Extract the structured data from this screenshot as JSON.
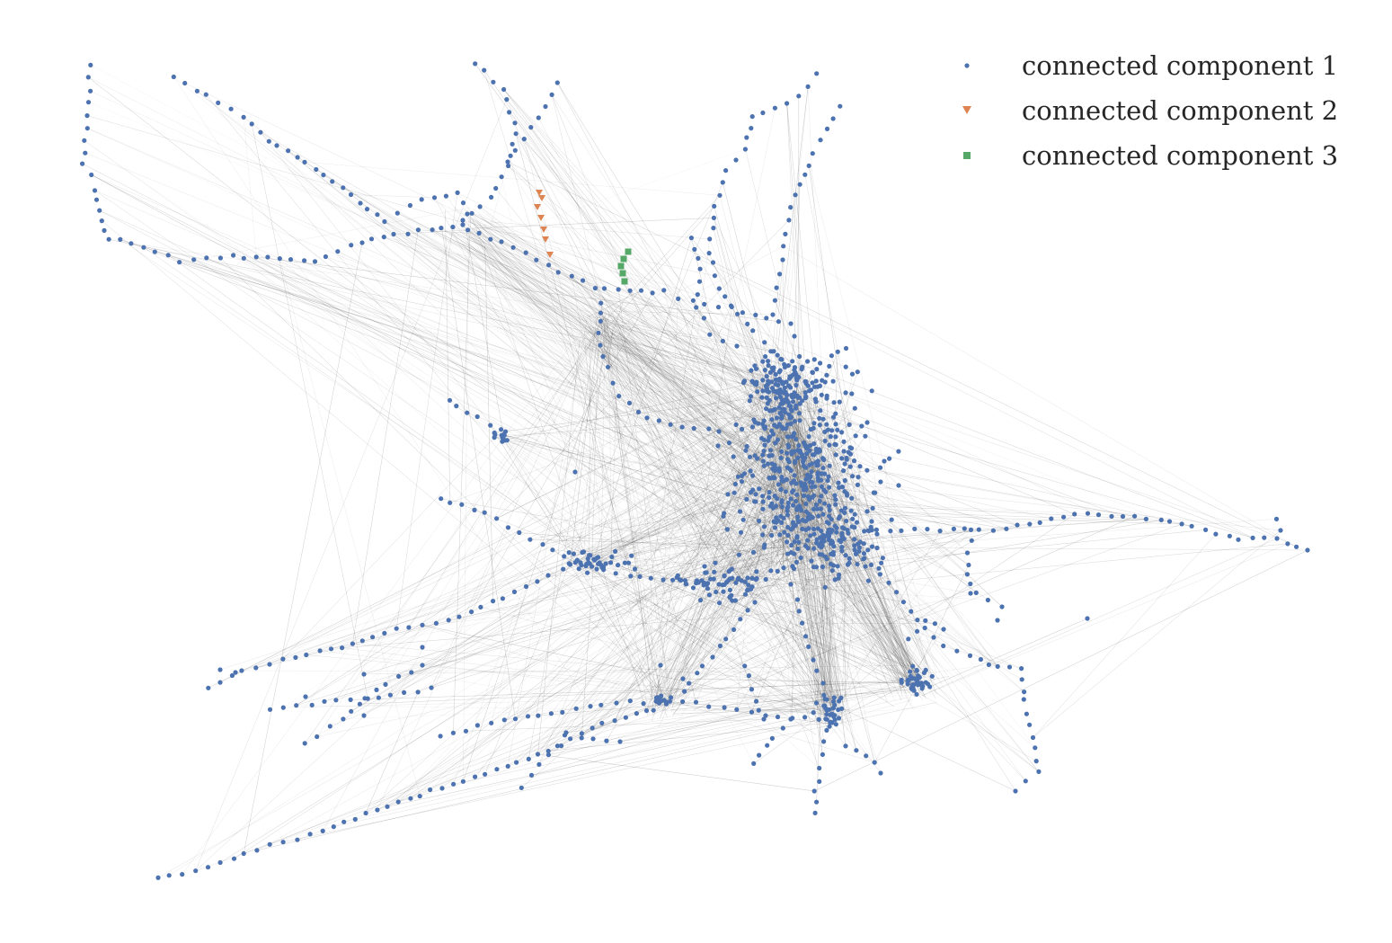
{
  "diagram": {
    "legend": [
      {
        "label": "connected component 1",
        "color": "#4c72b0",
        "marker": "circle"
      },
      {
        "label": "connected component 2",
        "color": "#dd8452",
        "marker": "triangle-down"
      },
      {
        "label": "connected component 3",
        "color": "#55a868",
        "marker": "square"
      }
    ],
    "edge_color": "#3a3a3a"
  }
}
